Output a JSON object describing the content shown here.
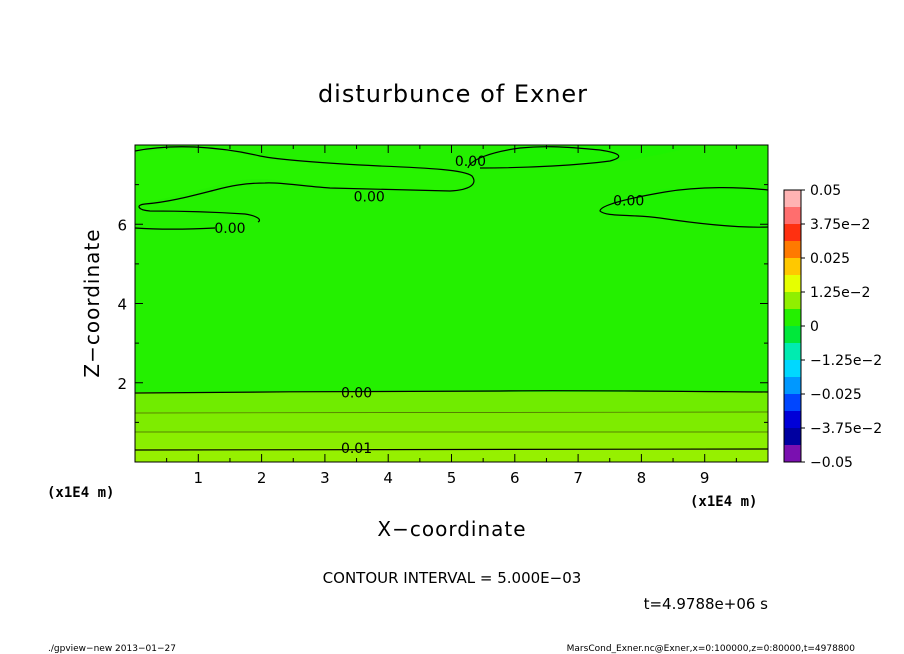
{
  "chart_data": {
    "type": "contour",
    "title": "disturbunce of Exner",
    "xlabel": "X−coordinate",
    "ylabel": "Z−coordinate",
    "x_unit_label": "(x1E4 m)",
    "y_unit_label": "(x1E4 m)",
    "xlim": [
      0,
      10
    ],
    "ylim": [
      0,
      8
    ],
    "x_ticks": [
      1,
      2,
      3,
      4,
      5,
      6,
      7,
      8,
      9
    ],
    "y_ticks": [
      2,
      4,
      6
    ],
    "contour_labels": [
      {
        "text": "0.00",
        "x": 5.3,
        "y": 7.6
      },
      {
        "text": "0.00",
        "x": 3.7,
        "y": 6.7
      },
      {
        "text": "0.00",
        "x": 7.8,
        "y": 6.6
      },
      {
        "text": "0.00",
        "x": 1.5,
        "y": 5.9
      },
      {
        "text": "0.00",
        "x": 3.5,
        "y": 1.75
      },
      {
        "text": "0.01",
        "x": 3.5,
        "y": 0.35
      }
    ],
    "colorbar": {
      "tick_labels": [
        "0.05",
        "3.75e−2",
        "0.025",
        "1.25e−2",
        "0",
        "−1.25e−2",
        "−0.025",
        "−3.75e−2",
        "−0.05"
      ],
      "colors": [
        "#ffb3b3",
        "#ff6e6e",
        "#ff3010",
        "#ff7a00",
        "#ffc800",
        "#e6ff00",
        "#90ef00",
        "#24f000",
        "#00e83a",
        "#00ebb0",
        "#00d8ff",
        "#0098ff",
        "#0046ff",
        "#0000d8",
        "#0000a0",
        "#7a10b0"
      ]
    },
    "contour_interval": "CONTOUR INTERVAL = 5.000E−03",
    "time": "t=4.9788e+06 s"
  },
  "footer": {
    "left": "./gpview−new 2013−01−27",
    "right": "MarsCond_Exner.nc@Exner,x=0:100000,z=0:80000,t=4978800"
  }
}
